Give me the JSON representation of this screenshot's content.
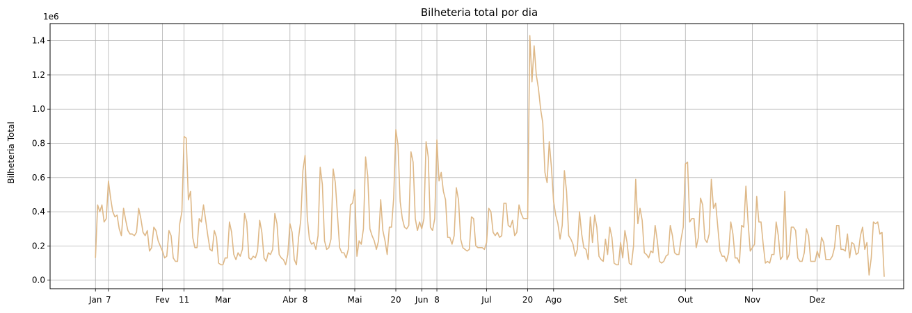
{
  "chart_data": {
    "type": "line",
    "title": "Bilheteria total por dia",
    "xlabel": "",
    "ylabel": "Bilheteria Total",
    "y_offset_label": "1e6",
    "ylim": [
      -0.05,
      1.5
    ],
    "y_scale": 1000000,
    "y_ticks": [
      0.0,
      0.2,
      0.4,
      0.6,
      0.8,
      1.0,
      1.2,
      1.4
    ],
    "y_tick_labels": [
      "0.0",
      "0.2",
      "0.4",
      "0.6",
      "0.8",
      "1.0",
      "1.2",
      "1.4"
    ],
    "xlim": [
      "2017-12-11",
      "2019-01-10"
    ],
    "x_ticks": [
      "2018-01-01",
      "2018-01-07",
      "2018-02-01",
      "2018-02-11",
      "2018-03-01",
      "2018-04-01",
      "2018-04-08",
      "2018-05-01",
      "2018-05-20",
      "2018-06-01",
      "2018-06-08",
      "2018-07-01",
      "2018-07-20",
      "2018-08-01",
      "2018-09-01",
      "2018-10-01",
      "2018-11-01",
      "2018-12-01"
    ],
    "x_tick_labels": [
      "Jan",
      "7",
      "Fev",
      "11",
      "Mar",
      "Abr",
      "8",
      "Mai",
      "20",
      "Jun",
      "8",
      "Jul",
      "20",
      "Ago",
      "Set",
      "Out",
      "Nov",
      "Dez"
    ],
    "grid": true,
    "line_color": "#deb887",
    "series": [
      {
        "name": "",
        "x_start": "2018-01-01",
        "y": [
          0.13,
          0.44,
          0.4,
          0.44,
          0.34,
          0.36,
          0.58,
          0.48,
          0.4,
          0.37,
          0.38,
          0.3,
          0.26,
          0.42,
          0.35,
          0.29,
          0.27,
          0.27,
          0.26,
          0.28,
          0.42,
          0.36,
          0.28,
          0.26,
          0.29,
          0.17,
          0.19,
          0.31,
          0.29,
          0.23,
          0.2,
          0.17,
          0.13,
          0.14,
          0.29,
          0.26,
          0.13,
          0.11,
          0.11,
          0.33,
          0.4,
          0.84,
          0.83,
          0.47,
          0.52,
          0.25,
          0.19,
          0.19,
          0.36,
          0.34,
          0.44,
          0.35,
          0.26,
          0.18,
          0.17,
          0.29,
          0.25,
          0.1,
          0.09,
          0.09,
          0.13,
          0.13,
          0.34,
          0.28,
          0.15,
          0.12,
          0.16,
          0.14,
          0.18,
          0.39,
          0.34,
          0.13,
          0.12,
          0.14,
          0.13,
          0.17,
          0.35,
          0.28,
          0.13,
          0.11,
          0.16,
          0.15,
          0.18,
          0.39,
          0.33,
          0.15,
          0.13,
          0.12,
          0.09,
          0.15,
          0.33,
          0.28,
          0.12,
          0.09,
          0.25,
          0.35,
          0.64,
          0.73,
          0.37,
          0.24,
          0.21,
          0.22,
          0.18,
          0.26,
          0.66,
          0.56,
          0.23,
          0.18,
          0.19,
          0.24,
          0.65,
          0.57,
          0.38,
          0.19,
          0.16,
          0.16,
          0.13,
          0.18,
          0.44,
          0.45,
          0.53,
          0.14,
          0.23,
          0.21,
          0.3,
          0.72,
          0.61,
          0.3,
          0.26,
          0.23,
          0.18,
          0.23,
          0.47,
          0.29,
          0.23,
          0.15,
          0.31,
          0.31,
          0.48,
          0.88,
          0.79,
          0.46,
          0.36,
          0.31,
          0.3,
          0.32,
          0.75,
          0.69,
          0.36,
          0.29,
          0.34,
          0.3,
          0.36,
          0.81,
          0.72,
          0.31,
          0.29,
          0.36,
          0.82,
          0.58,
          0.63,
          0.52,
          0.47,
          0.25,
          0.25,
          0.21,
          0.26,
          0.54,
          0.47,
          0.24,
          0.19,
          0.18,
          0.17,
          0.18,
          0.37,
          0.36,
          0.2,
          0.19,
          0.19,
          0.19,
          0.18,
          0.22,
          0.42,
          0.4,
          0.28,
          0.26,
          0.28,
          0.25,
          0.26,
          0.45,
          0.45,
          0.32,
          0.31,
          0.35,
          0.26,
          0.28,
          0.44,
          0.39,
          0.36,
          0.36,
          0.36,
          1.43,
          1.16,
          1.37,
          1.2,
          1.12,
          1.0,
          0.92,
          0.63,
          0.57,
          0.81,
          0.66,
          0.46,
          0.38,
          0.33,
          0.24,
          0.32,
          0.64,
          0.52,
          0.26,
          0.24,
          0.21,
          0.14,
          0.18,
          0.4,
          0.27,
          0.19,
          0.18,
          0.12,
          0.37,
          0.22,
          0.38,
          0.31,
          0.14,
          0.12,
          0.11,
          0.24,
          0.15,
          0.31,
          0.25,
          0.1,
          0.09,
          0.09,
          0.22,
          0.13,
          0.29,
          0.22,
          0.1,
          0.09,
          0.2,
          0.59,
          0.33,
          0.42,
          0.35,
          0.16,
          0.15,
          0.13,
          0.17,
          0.16,
          0.32,
          0.23,
          0.11,
          0.1,
          0.11,
          0.14,
          0.15,
          0.32,
          0.26,
          0.16,
          0.15,
          0.15,
          0.24,
          0.31,
          0.68,
          0.69,
          0.34,
          0.36,
          0.36,
          0.19,
          0.25,
          0.48,
          0.44,
          0.24,
          0.22,
          0.27,
          0.59,
          0.42,
          0.45,
          0.31,
          0.17,
          0.14,
          0.14,
          0.11,
          0.16,
          0.34,
          0.27,
          0.13,
          0.13,
          0.1,
          0.32,
          0.31,
          0.55,
          0.34,
          0.17,
          0.19,
          0.21,
          0.49,
          0.34,
          0.34,
          0.21,
          0.1,
          0.11,
          0.1,
          0.15,
          0.15,
          0.34,
          0.26,
          0.12,
          0.14,
          0.52,
          0.12,
          0.15,
          0.31,
          0.31,
          0.29,
          0.13,
          0.11,
          0.11,
          0.16,
          0.3,
          0.26,
          0.11,
          0.11,
          0.11,
          0.17,
          0.13,
          0.25,
          0.22,
          0.12,
          0.12,
          0.12,
          0.14,
          0.19,
          0.32,
          0.32,
          0.18,
          0.18,
          0.17,
          0.27,
          0.13,
          0.22,
          0.21,
          0.15,
          0.16,
          0.26,
          0.31,
          0.18,
          0.22,
          0.03,
          0.13,
          0.34,
          0.33,
          0.34,
          0.27,
          0.28,
          0.02
        ]
      }
    ]
  }
}
